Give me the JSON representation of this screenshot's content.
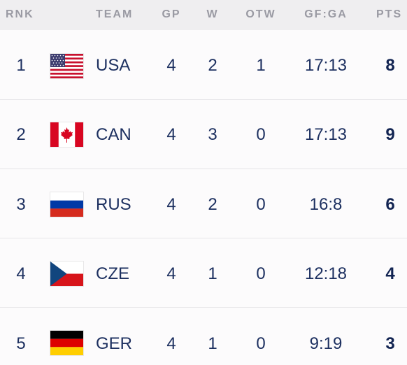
{
  "headers": {
    "rank": "RNK",
    "team": "TEAM",
    "gp": "GP",
    "w": "W",
    "otw": "OTW",
    "gfga": "GF:GA",
    "pts": "PTS"
  },
  "rows": [
    {
      "rank": "1",
      "flag": "usa-flag-icon",
      "team": "USA",
      "gp": "4",
      "w": "2",
      "otw": "1",
      "gfga": "17:13",
      "pts": "8"
    },
    {
      "rank": "2",
      "flag": "canada-flag-icon",
      "team": "CAN",
      "gp": "4",
      "w": "3",
      "otw": "0",
      "gfga": "17:13",
      "pts": "9"
    },
    {
      "rank": "3",
      "flag": "russia-flag-icon",
      "team": "RUS",
      "gp": "4",
      "w": "2",
      "otw": "0",
      "gfga": "16:8",
      "pts": "6"
    },
    {
      "rank": "4",
      "flag": "czech-flag-icon",
      "team": "CZE",
      "gp": "4",
      "w": "1",
      "otw": "0",
      "gfga": "12:18",
      "pts": "4"
    },
    {
      "rank": "5",
      "flag": "germany-flag-icon",
      "team": "GER",
      "gp": "4",
      "w": "1",
      "otw": "0",
      "gfga": "9:19",
      "pts": "3"
    }
  ],
  "colors": {
    "header_bg": "#efeef0",
    "header_text": "#9a9aa3",
    "row_text": "#1d3060",
    "row_divider": "#e6e5e8"
  }
}
